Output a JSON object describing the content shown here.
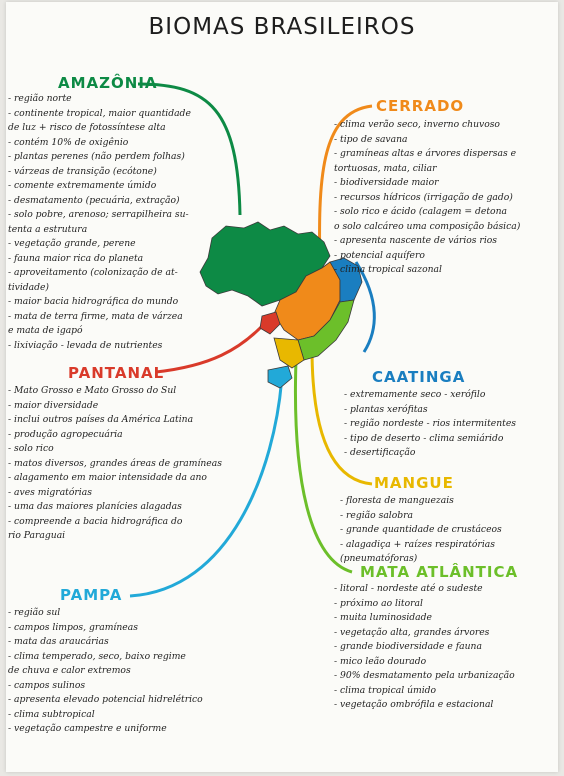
{
  "title": "BIOMAS BRASILEIROS",
  "colors": {
    "amazonia": "#0d8a45",
    "cerrado": "#f08a1a",
    "pantanal": "#d93a2a",
    "caatinga": "#1a7ec0",
    "mangue": "#e8b800",
    "mata_atlantica": "#6cbf2a",
    "pampa": "#22a9d8"
  },
  "biomes": {
    "amazonia": {
      "name": "AMAZÔNIA",
      "notes": [
        "- região norte",
        "- continente tropical, maior quantidade",
        "  de luz + risco de fotossíntese alta",
        "- contém 10% de oxigênio",
        "- plantas perenes (não perdem folhas)",
        "- várzeas de transição (ecótone)",
        "- comente extremamente úmido",
        "- desmatamento (pecuária, extração)",
        "- solo pobre, arenoso; serrapilheira su-",
        "  tenta a estrutura",
        "- vegetação grande, perene",
        "- fauna maior rica do planeta",
        "- aproveitamento (colonização de at-",
        "  tividade)",
        "- maior bacia hidrográfica do mundo",
        "- mata de terra firme, mata de várzea",
        "  e mata de igapó",
        "- lixiviação - levada de nutrientes"
      ]
    },
    "cerrado": {
      "name": "CERRADO",
      "notes": [
        "- clima verão seco, inverno chuvoso",
        "- tipo de savana",
        "- gramíneas altas e árvores dispersas e",
        "  tortuosas, mata, ciliar",
        "- biodiversidade maior",
        "- recursos hídricos (irrigação de gado)",
        "- solo rico e ácido (calagem = detona",
        "  o solo calcáreo uma composição básica)",
        "- apresenta nascente de vários rios",
        "- potencial aquífero",
        "- clima tropical sazonal"
      ]
    },
    "pantanal": {
      "name": "PANTANAL",
      "notes": [
        "- Mato Grosso e Mato Grosso do Sul",
        "- maior diversidade",
        "- inclui outros países da América Latina",
        "- produção agropecuária",
        "- solo rico",
        "- matos diversos, grandes áreas de gramíneas",
        "- alagamento em maior intensidade da ano",
        "- aves migratórias",
        "- uma das maiores planícies alagadas",
        "- compreende a bacia hidrográfica do",
        "  rio Paraguai"
      ]
    },
    "caatinga": {
      "name": "CAATINGA",
      "notes": [
        "- extremamente seco - xerófilo",
        "- plantas xerófitas",
        "- região nordeste - rios intermitentes",
        "- tipo de deserto - clima semiárido",
        "- desertificação"
      ]
    },
    "mangue": {
      "name": "MANGUE",
      "notes": [
        "- floresta de manguezais",
        "- região salobra",
        "- grande quantidade de crustáceos",
        "- alagadiça + raízes respiratórias",
        "  (pneumatóforas)"
      ]
    },
    "mata_atlantica": {
      "name": "MATA ATLÂNTICA",
      "notes": [
        "- litoral - nordeste até o sudeste",
        "- próximo ao litoral",
        "- muita luminosidade",
        "- vegetação alta, grandes árvores",
        "- grande biodiversidade e fauna",
        "- mico leão dourado",
        "- 90% desmatamento pela urbanização",
        "- clima tropical úmido",
        "- vegetação ombrófila e estacional"
      ]
    },
    "pampa": {
      "name": "PAMPA",
      "notes": [
        "- região sul",
        "- campos limpos, gramíneas",
        "- mata das araucárias",
        "- clima temperado, seco, baixo regime",
        "  de chuva e calor extremos",
        "- campos sulinos",
        "- apresenta elevado potencial hidrelétrico",
        "- clima subtropical",
        "- vegetação campestre e uniforme"
      ]
    }
  }
}
